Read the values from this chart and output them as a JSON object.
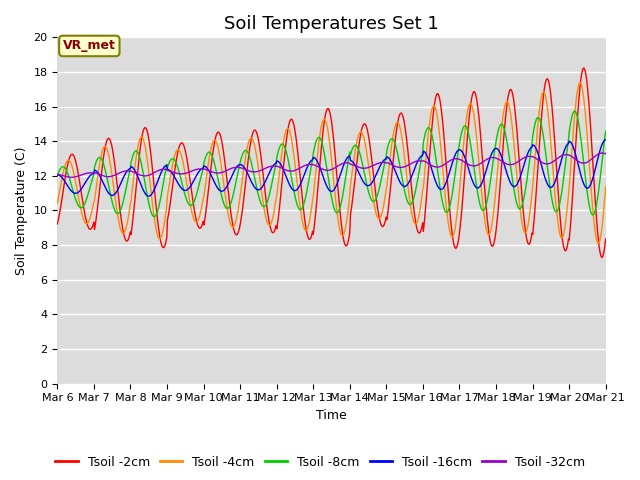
{
  "title": "Soil Temperatures Set 1",
  "xlabel": "Time",
  "ylabel": "Soil Temperature (C)",
  "ylim": [
    0,
    20
  ],
  "yticks": [
    0,
    2,
    4,
    6,
    8,
    10,
    12,
    14,
    16,
    18,
    20
  ],
  "x_labels": [
    "Mar 6",
    "Mar 7",
    "Mar 8",
    "Mar 9",
    "Mar 10",
    "Mar 11",
    "Mar 12",
    "Mar 13",
    "Mar 14",
    "Mar 15",
    "Mar 16",
    "Mar 17",
    "Mar 18",
    "Mar 19",
    "Mar 20",
    "Mar 21"
  ],
  "legend_labels": [
    "Tsoil -2cm",
    "Tsoil -4cm",
    "Tsoil -8cm",
    "Tsoil -16cm",
    "Tsoil -32cm"
  ],
  "colors": [
    "#ff0000",
    "#ff8c00",
    "#00cc00",
    "#0000ff",
    "#9900cc"
  ],
  "vr_met_label": "VR_met",
  "bg_color": "#dcdcdc",
  "title_fontsize": 13,
  "axis_fontsize": 9,
  "legend_fontsize": 9,
  "tick_fontsize": 8
}
